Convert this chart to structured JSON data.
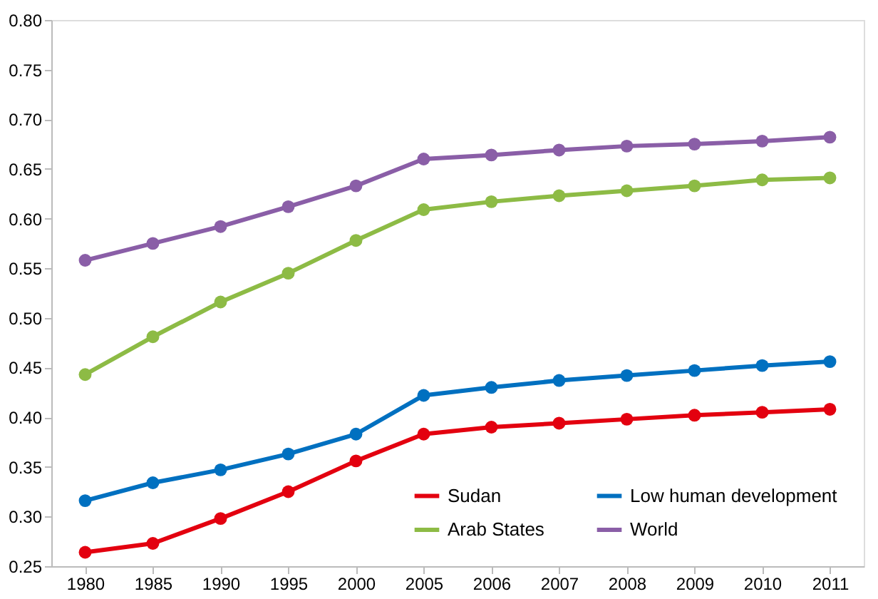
{
  "chart_data": {
    "type": "line",
    "categories": [
      "1980",
      "1985",
      "1990",
      "1995",
      "2000",
      "2005",
      "2006",
      "2007",
      "2008",
      "2009",
      "2010",
      "2011"
    ],
    "series": [
      {
        "name": "Sudan",
        "color": "#e3000f",
        "values": [
          0.264,
          0.273,
          0.298,
          0.325,
          0.356,
          0.383,
          0.39,
          0.394,
          0.398,
          0.402,
          0.405,
          0.408
        ]
      },
      {
        "name": "Low human development",
        "color": "#0070c0",
        "values": [
          0.316,
          0.334,
          0.347,
          0.363,
          0.383,
          0.422,
          0.43,
          0.437,
          0.442,
          0.447,
          0.452,
          0.456
        ]
      },
      {
        "name": "Arab States",
        "color": "#8dbb45",
        "values": [
          0.443,
          0.481,
          0.516,
          0.545,
          0.578,
          0.609,
          0.617,
          0.623,
          0.628,
          0.633,
          0.639,
          0.641
        ]
      },
      {
        "name": "World",
        "color": "#8a5ea7",
        "values": [
          0.558,
          0.575,
          0.592,
          0.612,
          0.633,
          0.66,
          0.664,
          0.669,
          0.673,
          0.675,
          0.678,
          0.682
        ]
      }
    ],
    "ylim": [
      0.25,
      0.8
    ],
    "yticks": [
      {
        "value": 0.25,
        "label": "0.25"
      },
      {
        "value": 0.3,
        "label": "0.30"
      },
      {
        "value": 0.35,
        "label": "0.35"
      },
      {
        "value": 0.4,
        "label": "0.40"
      },
      {
        "value": 0.45,
        "label": "0.45"
      },
      {
        "value": 0.5,
        "label": "0.50"
      },
      {
        "value": 0.55,
        "label": "0.55"
      },
      {
        "value": 0.6,
        "label": "0.60"
      },
      {
        "value": 0.65,
        "label": "0.65"
      },
      {
        "value": 0.7,
        "label": "0.70"
      },
      {
        "value": 0.75,
        "label": "0.75"
      },
      {
        "value": 0.8,
        "label": "0.80"
      }
    ],
    "grid": false,
    "legend": "bottom right",
    "marker": "circle",
    "line_style": "solid"
  }
}
